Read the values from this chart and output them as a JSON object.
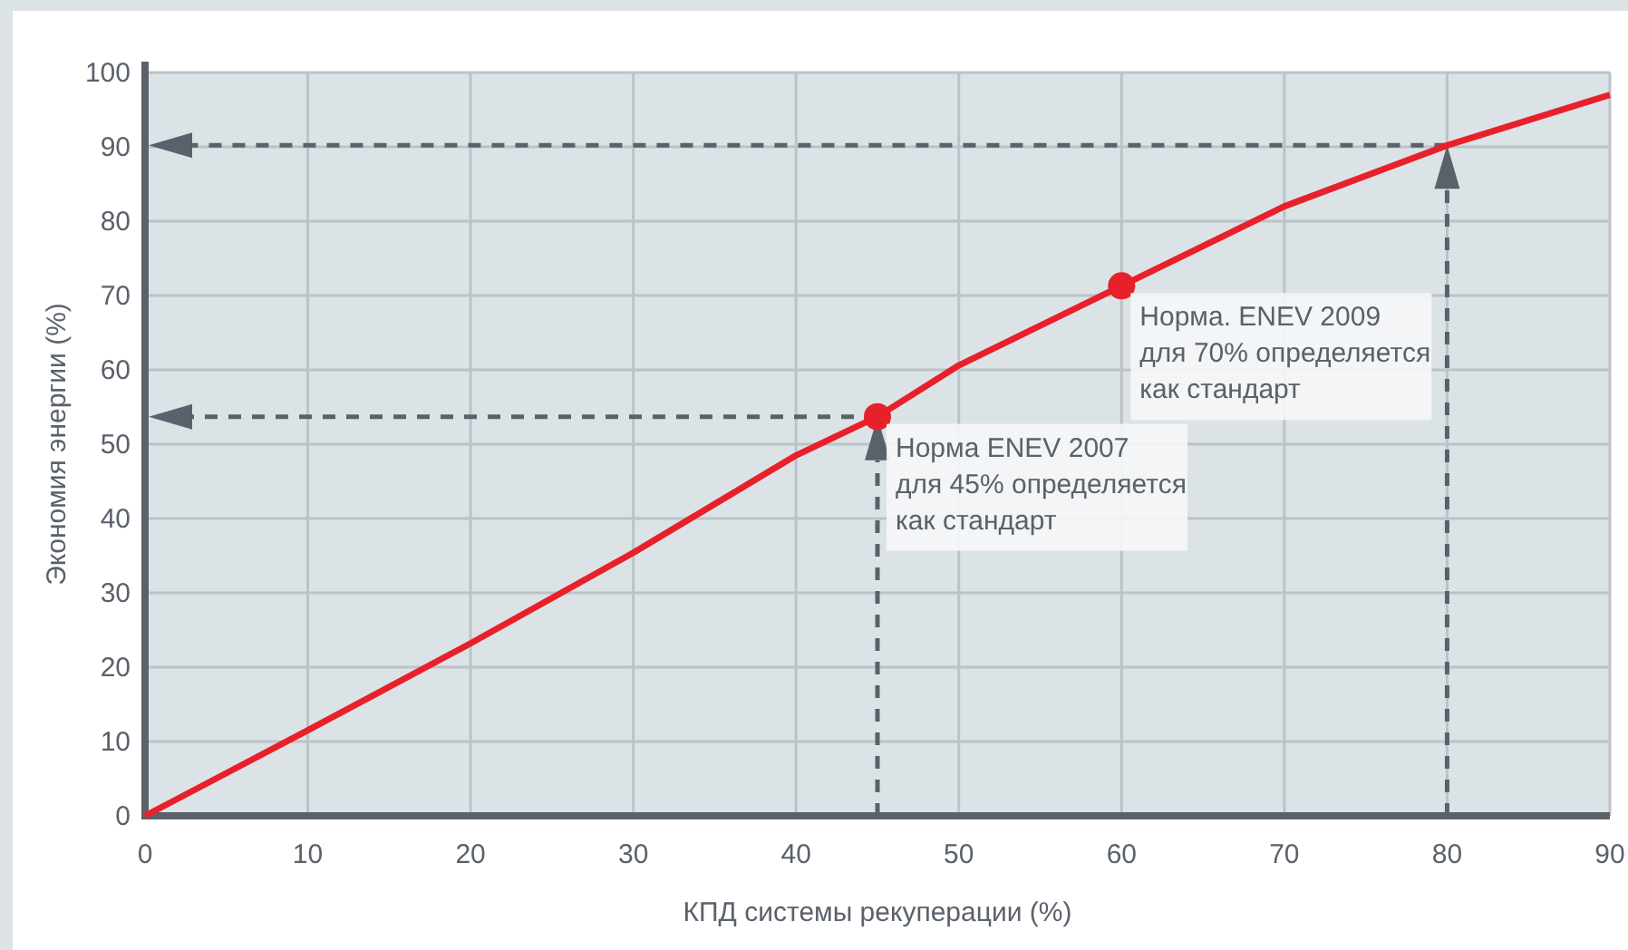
{
  "chart_data": {
    "type": "line",
    "xlabel": "КПД системы рекуперации (%)",
    "ylabel": "Экономия энергии (%)",
    "x": [
      0,
      10,
      20,
      30,
      40,
      45,
      50,
      60,
      70,
      80,
      90
    ],
    "series": [
      {
        "color": "#e8202a",
        "values": [
          0,
          11.5,
          23.2,
          35.4,
          48.5,
          53.7,
          60.6,
          71.3,
          82,
          90.2,
          97
        ],
        "marker": "none"
      },
      {
        "type": "scatter",
        "color": "#e8202a",
        "x": [
          45,
          60
        ],
        "values": [
          53.7,
          71.3
        ],
        "marker": "circle"
      }
    ],
    "annotations": [
      {
        "text": "Норма ENEV 2007\nдля 45% определяется\nкак стандарт",
        "x": 45,
        "y": 53.7
      },
      {
        "text": "Норма. ENEV 2009\nдля 70% определяется\nкак стандарт",
        "x": 60,
        "y": 71.3
      }
    ],
    "xlim": [
      0,
      90
    ],
    "ylim": [
      0,
      100
    ],
    "xticks": [
      0,
      10,
      20,
      30,
      40,
      50,
      60,
      70,
      80,
      90
    ],
    "yticks": [
      0,
      10,
      20,
      30,
      40,
      50,
      60,
      70,
      80,
      90,
      100
    ],
    "grid": true
  }
}
